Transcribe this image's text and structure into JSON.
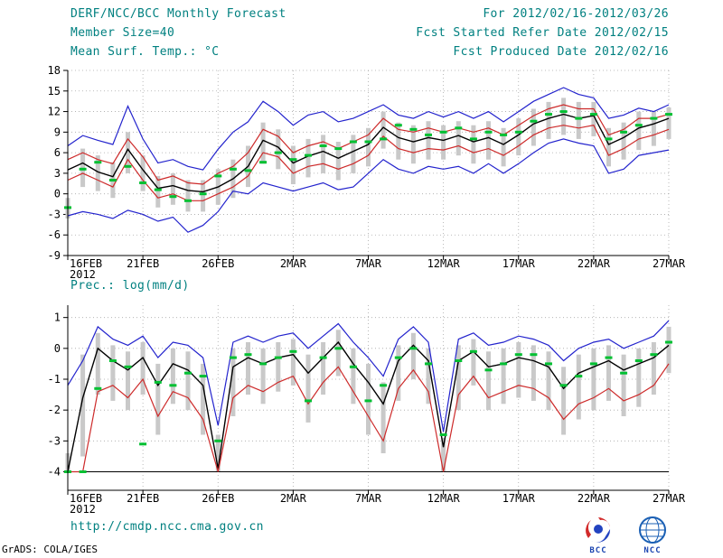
{
  "header": {
    "title_left": "DERF/NCC/BCC Monthly Forecast",
    "title_right": "For 2012/02/16-2012/03/26",
    "member_left": "Member Size=40",
    "member_right": "Fcst Started Refer Date 2012/02/15",
    "var_left": "Mean Surf. Temp.: °C",
    "var_right": "Fcst Produced Date 2012/02/16"
  },
  "precip_label": "Prec.: log(mm/d)",
  "footer": {
    "url": "http://cmdp.ncc.cma.gov.cn",
    "grads_credit": "GrADS: COLA/IGES",
    "logos": [
      {
        "label": "BCC"
      },
      {
        "label": "NCC"
      }
    ]
  },
  "colors": {
    "header_text": "#008080",
    "blue": "#2323cd",
    "red": "#cd2a2a",
    "black": "#000000",
    "green": "#00c032",
    "gray": "#c9c9c9",
    "grid": "#a8a8a8"
  },
  "chart_data": [
    {
      "type": "line",
      "name": "temp",
      "title": "Mean Surf. Temp.: °C",
      "ylim": [
        -9,
        18
      ],
      "yticks": [
        -9,
        -6,
        -3,
        0,
        3,
        6,
        9,
        12,
        15,
        18
      ],
      "n_points": 41,
      "xtick_positions": [
        0,
        5,
        10,
        15,
        20,
        25,
        30,
        35,
        40
      ],
      "xtick_labels": [
        "16FEB",
        "21FEB",
        "26FEB",
        "2MAR",
        "7MAR",
        "12MAR",
        "17MAR",
        "22MAR",
        "27MAR"
      ],
      "x_sublabel": "2012",
      "grid": true,
      "series": [
        {
          "name": "ensemble max",
          "color": "blue",
          "values": [
            7.0,
            8.5,
            7.8,
            7.2,
            12.8,
            8.0,
            4.5,
            5.0,
            4.0,
            3.5,
            6.5,
            9.0,
            10.5,
            13.5,
            12.0,
            10.0,
            11.5,
            12.0,
            10.5,
            11.0,
            12.0,
            13.0,
            11.5,
            11.0,
            12.0,
            11.2,
            12.0,
            11.0,
            12.0,
            10.5,
            12.0,
            13.5,
            14.5,
            15.5,
            14.5,
            14.0,
            11.0,
            11.5,
            12.5,
            12.0,
            13.0
          ]
        },
        {
          "name": "upper quartile",
          "color": "red",
          "values": [
            5.0,
            6.0,
            5.0,
            4.4,
            8.0,
            5.4,
            2.0,
            2.6,
            1.6,
            1.4,
            3.0,
            4.0,
            6.0,
            9.4,
            8.4,
            6.0,
            7.0,
            7.6,
            6.6,
            7.6,
            8.6,
            11.0,
            9.4,
            9.0,
            9.6,
            9.0,
            9.6,
            9.0,
            9.6,
            8.6,
            10.0,
            11.4,
            12.4,
            13.0,
            12.4,
            12.4,
            8.6,
            9.4,
            11.0,
            11.0,
            11.6
          ]
        },
        {
          "name": "ensemble mean",
          "color": "black",
          "values": [
            3.5,
            4.5,
            3.2,
            2.5,
            6.5,
            3.5,
            0.8,
            1.2,
            0.5,
            0.3,
            1.0,
            2.2,
            4.0,
            7.8,
            6.8,
            4.5,
            5.5,
            6.2,
            5.2,
            6.2,
            7.2,
            9.7,
            8.2,
            7.6,
            8.2,
            7.8,
            8.5,
            7.6,
            8.2,
            7.2,
            8.6,
            10.2,
            11.0,
            11.6,
            11.0,
            11.4,
            7.2,
            8.2,
            9.6,
            10.2,
            11.0
          ]
        },
        {
          "name": "lower quartile",
          "color": "red",
          "values": [
            2.0,
            3.0,
            2.0,
            1.0,
            5.0,
            2.0,
            -0.6,
            0.0,
            -1.0,
            -1.0,
            0.0,
            1.0,
            2.6,
            6.0,
            5.4,
            3.0,
            4.0,
            4.4,
            3.6,
            4.4,
            5.6,
            8.4,
            6.6,
            6.0,
            6.6,
            6.4,
            7.0,
            6.0,
            6.6,
            5.6,
            7.0,
            8.6,
            9.6,
            10.0,
            9.6,
            10.0,
            5.6,
            6.6,
            8.0,
            8.6,
            9.4
          ]
        },
        {
          "name": "ensemble min",
          "color": "blue",
          "values": [
            -3.2,
            -2.6,
            -3.0,
            -3.6,
            -2.4,
            -3.0,
            -4.0,
            -3.4,
            -5.6,
            -4.6,
            -2.6,
            0.4,
            0.0,
            1.6,
            1.0,
            0.4,
            1.0,
            1.6,
            0.6,
            1.0,
            3.0,
            5.0,
            3.6,
            3.0,
            4.0,
            3.6,
            4.0,
            3.0,
            4.4,
            3.0,
            4.4,
            6.0,
            7.4,
            8.0,
            7.4,
            7.0,
            3.0,
            3.6,
            5.6,
            6.0,
            6.4
          ]
        }
      ],
      "markers": {
        "name": "observation",
        "color": "green",
        "values": [
          -2.0,
          3.6,
          4.6,
          2.0,
          4.0,
          1.6,
          0.6,
          -0.4,
          -1.0,
          0.0,
          2.6,
          3.6,
          3.4,
          4.6,
          6.0,
          5.0,
          5.6,
          7.0,
          6.6,
          7.6,
          7.6,
          8.0,
          10.0,
          9.4,
          8.6,
          9.0,
          9.6,
          8.0,
          9.0,
          8.6,
          9.0,
          10.6,
          11.6,
          12.0,
          11.0,
          11.6,
          8.0,
          9.0,
          10.0,
          11.0,
          11.6
        ]
      },
      "spread_bars": {
        "color": "gray",
        "low": [
          -3.6,
          1.0,
          0.4,
          -0.6,
          3.0,
          0.4,
          -2.0,
          -1.6,
          -2.6,
          -2.6,
          -1.6,
          -0.6,
          1.0,
          4.4,
          3.6,
          1.4,
          2.4,
          3.0,
          2.0,
          3.0,
          4.0,
          6.6,
          5.0,
          4.4,
          5.0,
          5.0,
          5.6,
          4.4,
          5.0,
          4.0,
          5.6,
          7.0,
          8.0,
          8.6,
          8.0,
          8.4,
          4.0,
          5.0,
          6.4,
          7.0,
          8.0
        ],
        "high": [
          -0.6,
          6.6,
          5.6,
          4.6,
          9.0,
          5.6,
          2.6,
          3.0,
          2.0,
          2.0,
          3.6,
          5.0,
          7.0,
          10.4,
          9.4,
          7.0,
          8.0,
          8.6,
          7.6,
          8.6,
          9.6,
          12.0,
          10.4,
          10.0,
          10.6,
          10.0,
          10.6,
          10.0,
          10.6,
          9.6,
          11.0,
          12.4,
          13.4,
          14.0,
          13.4,
          13.4,
          9.6,
          10.4,
          12.0,
          12.0,
          12.6
        ]
      }
    },
    {
      "type": "line",
      "name": "precip",
      "title": "Prec.: log(mm/d)",
      "ylim": [
        -4.6,
        1.4
      ],
      "yticks": [
        -4,
        -3,
        -2,
        -1,
        0,
        1
      ],
      "n_points": 41,
      "xtick_positions": [
        0,
        5,
        10,
        15,
        20,
        25,
        30,
        35,
        40
      ],
      "xtick_labels": [
        "16FEB",
        "21FEB",
        "26FEB",
        "2MAR",
        "7MAR",
        "12MAR",
        "17MAR",
        "22MAR",
        "27MAR"
      ],
      "x_sublabel": "2012",
      "grid": true,
      "baseline": -4,
      "series": [
        {
          "name": "ensemble max",
          "color": "blue",
          "values": [
            -1.2,
            -0.4,
            0.7,
            0.3,
            0.1,
            0.4,
            -0.3,
            0.2,
            0.1,
            -0.3,
            -2.5,
            0.2,
            0.4,
            0.2,
            0.4,
            0.5,
            0.0,
            0.4,
            0.8,
            0.2,
            -0.3,
            -0.9,
            0.3,
            0.7,
            0.2,
            -2.7,
            0.3,
            0.5,
            0.1,
            0.2,
            0.4,
            0.3,
            0.1,
            -0.4,
            0.0,
            0.2,
            0.3,
            0.0,
            0.2,
            0.4,
            0.9
          ]
        },
        {
          "name": "ensemble mean",
          "color": "black",
          "values": [
            -4.0,
            -1.6,
            0.0,
            -0.4,
            -0.7,
            -0.3,
            -1.2,
            -0.5,
            -0.7,
            -1.2,
            -3.9,
            -0.6,
            -0.3,
            -0.5,
            -0.3,
            -0.2,
            -0.8,
            -0.3,
            0.2,
            -0.5,
            -1.1,
            -1.8,
            -0.4,
            0.1,
            -0.4,
            -3.2,
            -0.4,
            -0.1,
            -0.6,
            -0.5,
            -0.3,
            -0.4,
            -0.6,
            -1.3,
            -0.8,
            -0.6,
            -0.4,
            -0.7,
            -0.5,
            -0.3,
            0.1
          ]
        },
        {
          "name": "lower quartile",
          "color": "red",
          "values": [
            -4.0,
            -4.0,
            -1.4,
            -1.2,
            -1.6,
            -1.0,
            -2.2,
            -1.4,
            -1.6,
            -2.3,
            -4.0,
            -1.6,
            -1.2,
            -1.4,
            -1.1,
            -0.9,
            -1.8,
            -1.1,
            -0.6,
            -1.4,
            -2.2,
            -3.0,
            -1.3,
            -0.7,
            -1.4,
            -4.0,
            -1.5,
            -0.9,
            -1.6,
            -1.4,
            -1.2,
            -1.3,
            -1.6,
            -2.3,
            -1.8,
            -1.6,
            -1.3,
            -1.7,
            -1.5,
            -1.2,
            -0.5
          ]
        }
      ],
      "markers": {
        "name": "observation",
        "color": "green",
        "values": [
          -4.0,
          -4.0,
          -1.3,
          -0.4,
          -0.6,
          -3.1,
          -1.1,
          -1.2,
          -0.8,
          -0.9,
          -3.0,
          -0.3,
          -0.2,
          -0.5,
          -0.3,
          -0.1,
          -1.7,
          -0.3,
          0.0,
          -0.6,
          -1.7,
          -1.2,
          -0.3,
          0.0,
          -0.5,
          -2.8,
          -0.4,
          -0.1,
          -0.7,
          -0.5,
          -0.2,
          -0.2,
          -0.5,
          -1.2,
          -0.9,
          -0.5,
          -0.3,
          -0.8,
          -0.4,
          -0.2,
          0.2
        ]
      },
      "spread_bars": {
        "color": "gray",
        "low": [
          -4.0,
          -3.5,
          -1.5,
          -1.7,
          -2.0,
          -1.5,
          -2.8,
          -1.8,
          -2.0,
          -2.8,
          -4.0,
          -2.2,
          -1.5,
          -1.8,
          -1.4,
          -1.2,
          -2.4,
          -1.5,
          -0.9,
          -1.8,
          -2.8,
          -3.4,
          -1.7,
          -1.0,
          -1.8,
          -4.0,
          -2.0,
          -1.2,
          -2.0,
          -1.8,
          -1.6,
          -1.7,
          -2.0,
          -2.8,
          -2.3,
          -2.0,
          -1.7,
          -2.2,
          -1.9,
          -1.5,
          -0.8
        ],
        "high": [
          -3.4,
          -0.2,
          0.5,
          0.1,
          -0.1,
          0.2,
          -0.5,
          0.0,
          -0.1,
          -0.5,
          -2.8,
          0.0,
          0.2,
          0.0,
          0.2,
          0.3,
          -0.2,
          0.2,
          0.6,
          0.0,
          -0.5,
          -1.1,
          0.1,
          0.5,
          0.0,
          -2.9,
          0.1,
          0.3,
          -0.1,
          0.0,
          0.2,
          0.1,
          -0.1,
          -0.6,
          -0.2,
          0.0,
          0.1,
          -0.2,
          0.0,
          0.2,
          0.7
        ]
      }
    }
  ]
}
